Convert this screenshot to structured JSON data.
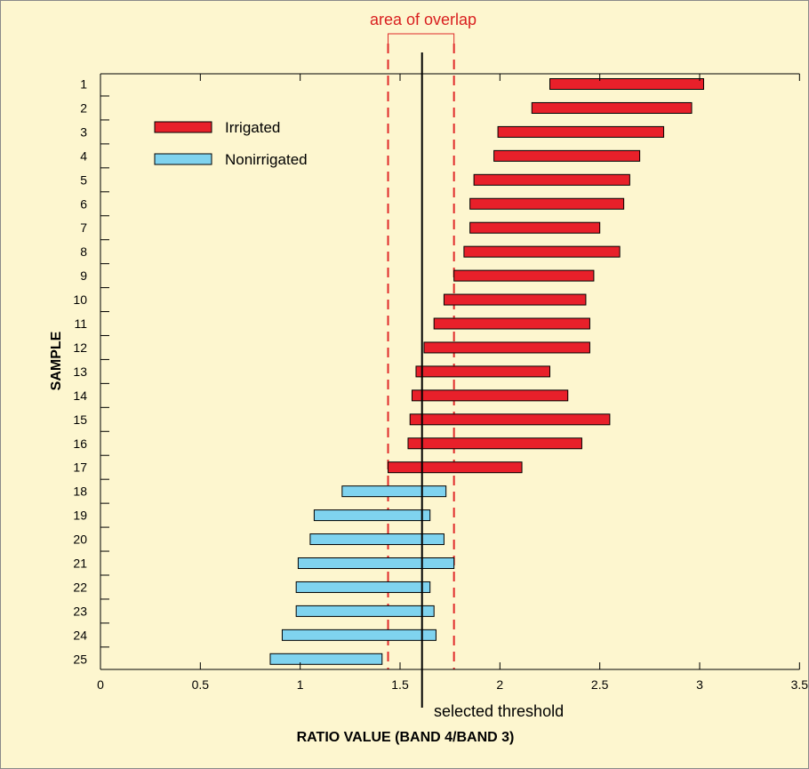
{
  "chart_data": {
    "type": "bar",
    "orientation": "horizontal-range",
    "title": "",
    "xlabel": "RATIO VALUE (BAND 4/BAND 3)",
    "ylabel": "SAMPLE",
    "xlim": [
      0,
      3.5
    ],
    "x_ticks": [
      "0",
      "0.5",
      "1",
      "1.5",
      "2",
      "2.5",
      "3",
      "3.5"
    ],
    "x_tick_values": [
      0,
      0.5,
      1,
      1.5,
      2,
      2.5,
      3,
      3.5
    ],
    "categories": [
      "1",
      "2",
      "3",
      "4",
      "5",
      "6",
      "7",
      "8",
      "9",
      "10",
      "11",
      "12",
      "13",
      "14",
      "15",
      "16",
      "17",
      "18",
      "19",
      "20",
      "21",
      "22",
      "23",
      "24",
      "25"
    ],
    "series": [
      {
        "name": "Irrigated",
        "color": "#e8202a",
        "samples": [
          "1",
          "2",
          "3",
          "4",
          "5",
          "6",
          "7",
          "8",
          "9",
          "10",
          "11",
          "12",
          "13",
          "14",
          "15",
          "16",
          "17"
        ],
        "ranges": [
          [
            2.25,
            3.02
          ],
          [
            2.16,
            2.96
          ],
          [
            1.99,
            2.82
          ],
          [
            1.97,
            2.7
          ],
          [
            1.87,
            2.65
          ],
          [
            1.85,
            2.62
          ],
          [
            1.85,
            2.5
          ],
          [
            1.82,
            2.6
          ],
          [
            1.77,
            2.47
          ],
          [
            1.72,
            2.43
          ],
          [
            1.67,
            2.45
          ],
          [
            1.62,
            2.45
          ],
          [
            1.58,
            2.25
          ],
          [
            1.56,
            2.34
          ],
          [
            1.55,
            2.55
          ],
          [
            1.54,
            2.41
          ],
          [
            1.44,
            2.11
          ]
        ]
      },
      {
        "name": "Nonirrigated",
        "color": "#7fd3ef",
        "samples": [
          "18",
          "19",
          "20",
          "21",
          "22",
          "23",
          "24",
          "25"
        ],
        "ranges": [
          [
            1.21,
            1.73
          ],
          [
            1.07,
            1.65
          ],
          [
            1.05,
            1.72
          ],
          [
            0.99,
            1.77
          ],
          [
            0.98,
            1.65
          ],
          [
            0.98,
            1.67
          ],
          [
            0.91,
            1.68
          ],
          [
            0.85,
            1.41
          ]
        ]
      }
    ],
    "threshold": {
      "value": 1.61,
      "label": "selected threshold"
    },
    "overlap": {
      "range": [
        1.44,
        1.77
      ],
      "label": "area of overlap"
    },
    "legend": {
      "placement": "top-left",
      "entries": [
        {
          "label": "Irrigated",
          "color": "#e8202a"
        },
        {
          "label": "Nonirrigated",
          "color": "#7fd3ef"
        }
      ]
    },
    "grid": false
  }
}
